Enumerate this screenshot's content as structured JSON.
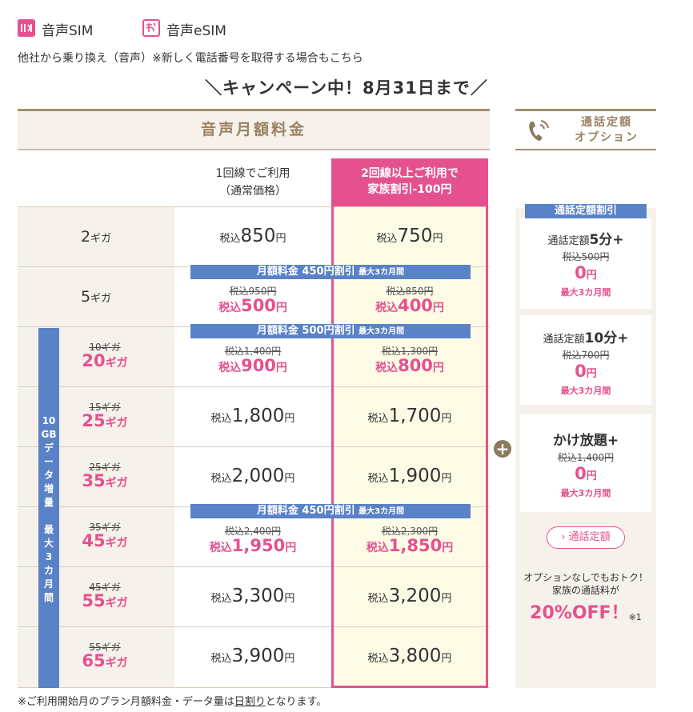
{
  "header": {
    "sim_label": "音声SIM",
    "esim_label": "音声eSIM",
    "subtitle": "他社から乗り換え（音声）※新しく電話番号を取得する場合もこちら",
    "campaign": "＼キャンペーン中！8月31日まで／"
  },
  "table": {
    "title": "音声月額料金",
    "col_normal_line1": "1回線でご利用",
    "col_normal_line2": "（通常価格）",
    "col_family_line1": "2回線以上ご利用で",
    "col_family_line2": "家族割引-100円",
    "tax_prefix": "税込",
    "yen": "円",
    "gb_unit": "ギガ",
    "vertical_band": "10GBデータ増量 最大3カ月間",
    "banners": [
      {
        "main": "月額料金 450円割引",
        "sub": "最大3カ月間"
      },
      {
        "main": "月額料金 500円割引",
        "sub": "最大3カ月間"
      },
      {
        "main": "月額料金 450円割引",
        "sub": "最大3カ月間"
      }
    ],
    "rows": [
      {
        "gb": "2",
        "normal": "850",
        "family": "750"
      },
      {
        "gb": "5",
        "normal_old": "税込950円",
        "normal": "500",
        "family_old": "税込850円",
        "family": "400"
      },
      {
        "gb_old": "10ギガ",
        "gb": "20",
        "normal_old": "税込1,400円",
        "normal": "900",
        "family_old": "税込1,300円",
        "family": "800"
      },
      {
        "gb_old": "15ギガ",
        "gb": "25",
        "normal": "1,800",
        "family": "1,700"
      },
      {
        "gb_old": "25ギガ",
        "gb": "35",
        "normal": "2,000",
        "family": "1,900"
      },
      {
        "gb_old": "35ギガ",
        "gb": "45",
        "normal_old": "税込2,400円",
        "normal": "1,950",
        "family_old": "税込2,300円",
        "family": "1,850"
      },
      {
        "gb_old": "45ギガ",
        "gb": "55",
        "normal": "3,300",
        "family": "3,200"
      },
      {
        "gb_old": "55ギガ",
        "gb": "65",
        "normal": "3,900",
        "family": "3,800"
      }
    ],
    "footnote_pre": "※ご利用開始月のプラン月額料金・データ量は",
    "footnote_link": "日割り",
    "footnote_post": "となります。"
  },
  "plus_symbol": "+",
  "options": {
    "header_line1": "通話定額",
    "header_line2": "オプション",
    "discount_tag": "通話定額割引",
    "cards": [
      {
        "name_pre": "通話定額",
        "name_bold": "5分+",
        "old": "税込500円",
        "zero": "0",
        "yen": "円",
        "duration": "最大3カ月間"
      },
      {
        "name_pre": "通話定額",
        "name_bold": "10分+",
        "old": "税込700円",
        "zero": "0",
        "yen": "円",
        "duration": "最大3カ月間"
      },
      {
        "name_pre": "",
        "name_bold": "かけ放題+",
        "old": "税込1,400円",
        "zero": "0",
        "yen": "円",
        "duration": "最大3カ月間"
      }
    ],
    "button_label": "通話定額",
    "note_line1": "オプションなしでもおトク！",
    "note_line2": "家族の通話料が",
    "off_text": "20%OFF！",
    "off_note": "※1"
  },
  "colors": {
    "pink": "#e5518f",
    "blue": "#5a82c6",
    "beige": "#f6f1ea",
    "cream": "#fdfbe6",
    "gold": "#9a8262"
  }
}
